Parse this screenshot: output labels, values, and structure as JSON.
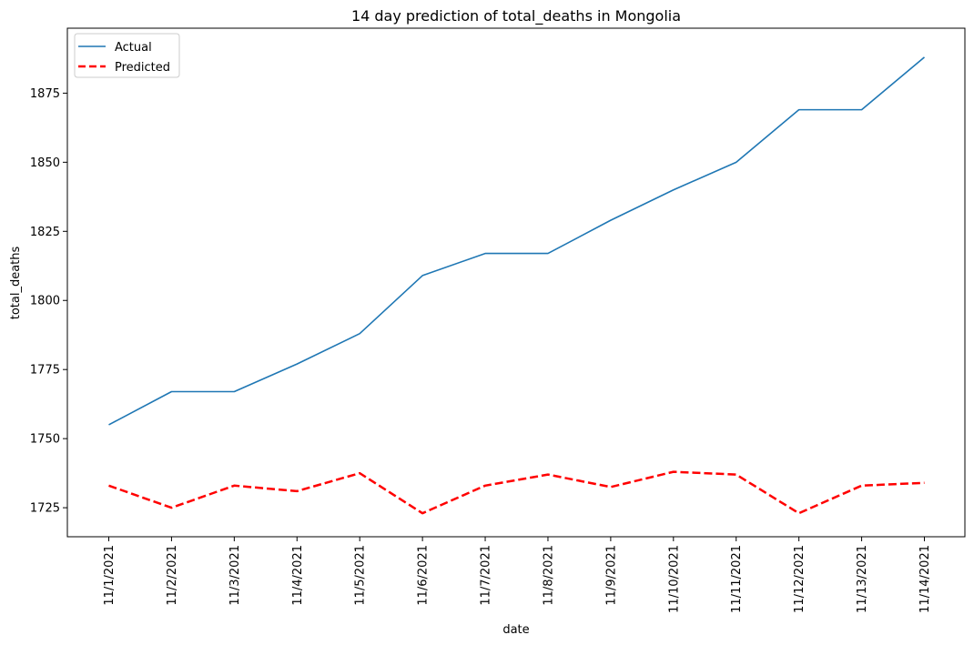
{
  "chart_data": {
    "type": "line",
    "title": "14 day prediction of total_deaths in Mongolia",
    "xlabel": "date",
    "ylabel": "total_deaths",
    "categories": [
      "11/1/2021",
      "11/2/2021",
      "11/3/2021",
      "11/4/2021",
      "11/5/2021",
      "11/6/2021",
      "11/7/2021",
      "11/8/2021",
      "11/9/2021",
      "11/10/2021",
      "11/11/2021",
      "11/12/2021",
      "11/13/2021",
      "11/14/2021"
    ],
    "yticks": [
      1725,
      1750,
      1775,
      1800,
      1825,
      1850,
      1875
    ],
    "ylim": [
      1714.5,
      1898.5
    ],
    "grid": false,
    "legend_position": "upper-left",
    "series": [
      {
        "name": "Actual",
        "color": "#1f77b4",
        "style": "solid",
        "values": [
          1755,
          1767,
          1767,
          1777,
          1788,
          1809,
          1817,
          1817,
          1829,
          1840,
          1850,
          1869,
          1869,
          1888
        ]
      },
      {
        "name": "Predicted",
        "color": "#ff0000",
        "style": "dashed",
        "values": [
          1733,
          1725,
          1733,
          1731,
          1737.5,
          1723,
          1733,
          1737,
          1732.5,
          1738,
          1737,
          1723,
          1733,
          1734
        ]
      }
    ]
  }
}
